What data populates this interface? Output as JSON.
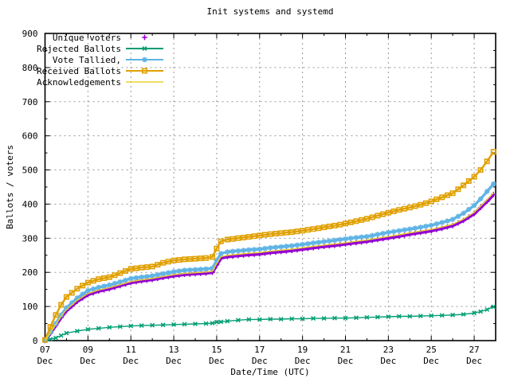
{
  "page": {
    "background": "#ffffff"
  },
  "colors": {
    "grid": "#989898",
    "axis": "#000000",
    "text": "#000000"
  },
  "chart_data": {
    "type": "line",
    "title": "Init systems and systemd",
    "xlabel": "Date/Time (UTC)",
    "ylabel": "Ballots / voters",
    "xlim": [
      7,
      28
    ],
    "ylim": [
      0,
      900
    ],
    "x_axis_unit": "day of December (UTC)",
    "x_major_tick_days": [
      7,
      9,
      11,
      13,
      15,
      17,
      19,
      21,
      23,
      25,
      27
    ],
    "x_tick_labels": [
      "07",
      "09",
      "11",
      "13",
      "15",
      "17",
      "19",
      "21",
      "23",
      "25",
      "27"
    ],
    "x_tick_month": "Dec",
    "x_minor_tick_days": [
      8,
      10,
      12,
      14,
      16,
      18,
      20,
      22,
      24,
      26
    ],
    "y_major_ticks": [
      0,
      100,
      200,
      300,
      400,
      500,
      600,
      700,
      800,
      900
    ],
    "y_minor_step": 50,
    "grid": true,
    "legend_position": "top-left inside",
    "x": [
      7,
      7.25,
      7.5,
      7.75,
      8,
      8.5,
      9,
      9.5,
      10,
      10.5,
      11,
      11.5,
      12,
      12.5,
      13,
      13.5,
      14,
      14.5,
      14.8,
      15,
      15.2,
      15.5,
      16,
      16.5,
      17,
      17.5,
      18,
      18.5,
      19,
      19.5,
      20,
      20.5,
      21,
      21.5,
      22,
      22.5,
      23,
      23.5,
      24,
      24.5,
      25,
      25.5,
      26,
      26.5,
      27,
      27.3,
      27.6,
      27.9
    ],
    "series": [
      {
        "name": "Unique voters",
        "style": "points",
        "marker": "plus",
        "line": "band",
        "color": "#9400d3",
        "values": [
          0,
          22,
          45,
          68,
          88,
          115,
          135,
          145,
          152,
          161,
          170,
          175,
          179,
          185,
          190,
          194,
          196,
          198,
          200,
          222,
          242,
          246,
          249,
          252,
          254,
          258,
          261,
          264,
          268,
          272,
          276,
          279,
          283,
          287,
          291,
          296,
          301,
          306,
          312,
          317,
          322,
          329,
          337,
          352,
          372,
          390,
          408,
          428
        ]
      },
      {
        "name": "Rejected Ballots",
        "style": "linespoints",
        "marker": "cross",
        "line": "thin",
        "color": "#009e73",
        "values": [
          0,
          4,
          8,
          15,
          22,
          28,
          33,
          36,
          39,
          41,
          43,
          44,
          45,
          46,
          47,
          48,
          49,
          50,
          51,
          54,
          55,
          57,
          60,
          62,
          62,
          63,
          63,
          64,
          64,
          65,
          65,
          66,
          66,
          67,
          68,
          69,
          70,
          71,
          71,
          72,
          73,
          74,
          75,
          77,
          81,
          85,
          91,
          99
        ]
      },
      {
        "name": "Vote Tallied,",
        "style": "linespoints",
        "marker": "asterisk",
        "line": "band2",
        "color": "#5fb4e5",
        "values": [
          0,
          25,
          50,
          75,
          96,
          125,
          147,
          156,
          163,
          172,
          182,
          186,
          190,
          196,
          202,
          206,
          208,
          210,
          212,
          235,
          255,
          260,
          263,
          266,
          268,
          272,
          275,
          278,
          282,
          286,
          290,
          294,
          298,
          302,
          305,
          311,
          317,
          322,
          327,
          332,
          338,
          346,
          355,
          373,
          396,
          415,
          437,
          459
        ]
      },
      {
        "name": "Received Ballots",
        "style": "linespoints",
        "marker": "square",
        "line": "medium",
        "color": "#e0a000",
        "values": [
          2,
          40,
          75,
          105,
          128,
          152,
          170,
          180,
          186,
          198,
          210,
          214,
          217,
          228,
          235,
          238,
          240,
          242,
          245,
          270,
          291,
          296,
          300,
          304,
          308,
          312,
          315,
          318,
          322,
          327,
          332,
          337,
          343,
          350,
          357,
          366,
          375,
          383,
          390,
          398,
          408,
          420,
          432,
          455,
          480,
          500,
          525,
          553
        ]
      },
      {
        "name": "Acknowledgements",
        "style": "lines",
        "marker": "none",
        "line": "thin",
        "color": "#e6d22e",
        "values": [
          0,
          24,
          48,
          71,
          91,
          118,
          138,
          148,
          155,
          164,
          173,
          178,
          182,
          188,
          193,
          197,
          199,
          201,
          203,
          226,
          246,
          250,
          253,
          256,
          258,
          262,
          265,
          268,
          272,
          276,
          280,
          283,
          287,
          291,
          295,
          300,
          305,
          310,
          316,
          321,
          326,
          333,
          341,
          356,
          376,
          394,
          413,
          433
        ]
      }
    ]
  }
}
